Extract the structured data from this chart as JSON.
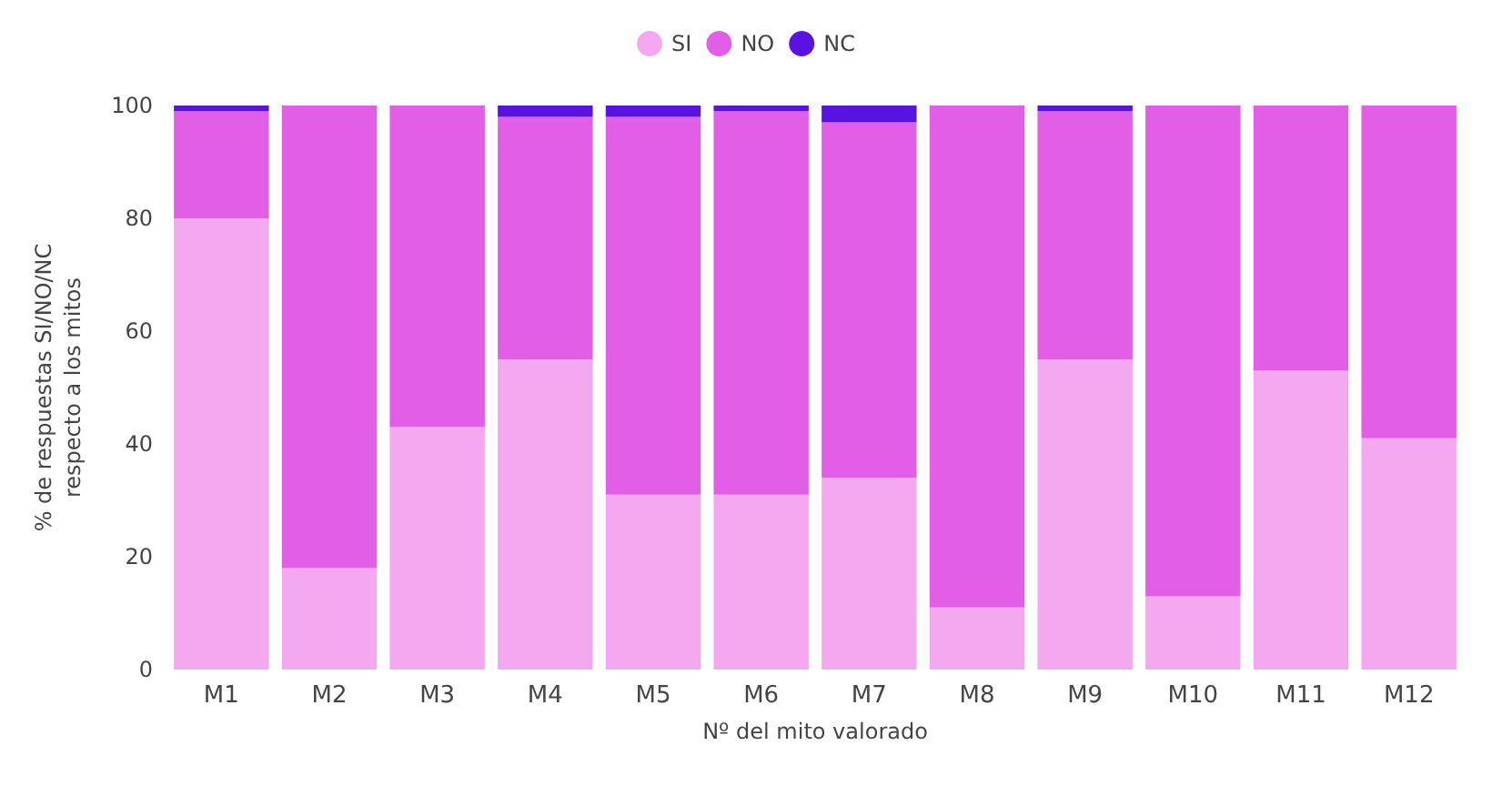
{
  "chart_data": {
    "type": "bar",
    "stacked": true,
    "xlabel": "Nº del mito valorado",
    "ylabel": "% de respuestas SI/NO/NC\nrespecto a los mitos",
    "categories": [
      "M1",
      "M2",
      "M3",
      "M4",
      "M5",
      "M6",
      "M7",
      "M8",
      "M9",
      "M10",
      "M11",
      "M12"
    ],
    "series": [
      {
        "name": "SI",
        "color": "#f4a8f0",
        "values": [
          80,
          18,
          43,
          55,
          31,
          31,
          34,
          11,
          55,
          13,
          53,
          41
        ]
      },
      {
        "name": "NO",
        "color": "#e25ee6",
        "values": [
          19,
          82,
          57,
          43,
          67,
          68,
          63,
          89,
          44,
          87,
          47,
          59
        ]
      },
      {
        "name": "NC",
        "color": "#5a12e0",
        "values": [
          1,
          0,
          0,
          2,
          2,
          1,
          3,
          0,
          1,
          0,
          0,
          0
        ]
      }
    ],
    "ylim": [
      0,
      100
    ],
    "yticks": [
      0,
      20,
      40,
      60,
      80,
      100
    ],
    "grid": false,
    "legend": "top"
  }
}
